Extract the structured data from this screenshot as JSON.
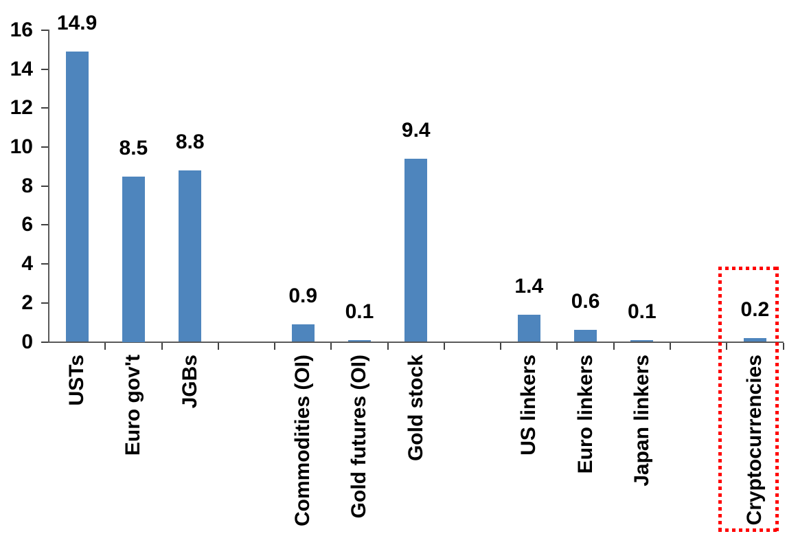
{
  "chart_data": {
    "type": "bar",
    "title": "",
    "xlabel": "",
    "ylabel": "",
    "categories": [
      "USTs",
      "Euro gov't",
      "JGBs",
      "Commodities (OI)",
      "Gold futures (OI)",
      "Gold stock",
      "US linkers",
      "Euro linkers",
      "Japan linkers",
      "Cryptocurrencies"
    ],
    "values": [
      14.9,
      8.5,
      8.8,
      0.9,
      0.1,
      9.4,
      1.4,
      0.6,
      0.1,
      0.2
    ],
    "data_labels": [
      "14.9",
      "8.5",
      "8.8",
      "0.9",
      "0.1",
      "9.4",
      "1.4",
      "0.6",
      "0.1",
      "0.2"
    ],
    "category_slots": [
      0,
      1,
      2,
      4,
      5,
      6,
      8,
      9,
      10,
      12
    ],
    "slot_count": 13,
    "y_ticks": [
      0,
      2,
      4,
      6,
      8,
      10,
      12,
      14,
      16
    ],
    "ylim": [
      0,
      16
    ],
    "grid": false,
    "legend": "none",
    "highlight": {
      "category": "Cryptocurrencies",
      "value": 0.2,
      "style": "red-dotted-rectangle"
    },
    "colors": {
      "bar": "#4E85BD",
      "highlight": "#FF0000",
      "axis": "#595959",
      "tick": "#404040",
      "text": "#000000",
      "background": "#FFFFFF"
    }
  }
}
